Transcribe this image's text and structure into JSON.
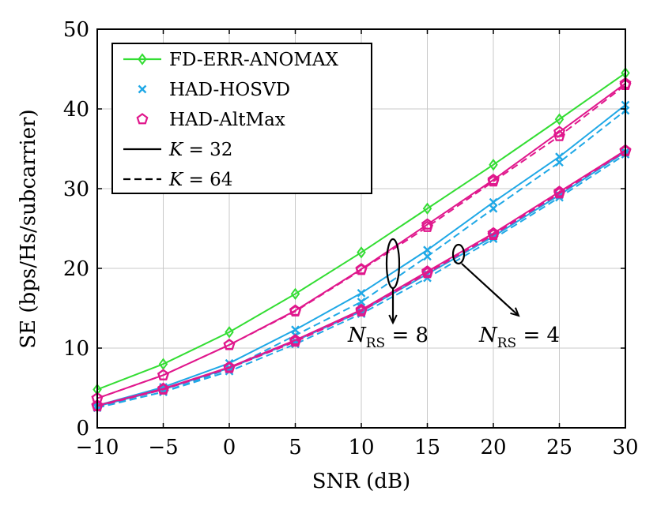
{
  "chart_data": {
    "type": "line",
    "xlabel": "SNR (dB)",
    "ylabel": "SE (bps/Hs/subcarrier)",
    "xlim": [
      -10,
      30
    ],
    "ylim": [
      0,
      50
    ],
    "xticks": [
      "−10",
      "−5",
      "0",
      "5",
      "10",
      "15",
      "20",
      "25",
      "30"
    ],
    "yticks": [
      "0",
      "10",
      "20",
      "30",
      "40",
      "50"
    ],
    "grid": true,
    "legend_position": "top-left",
    "x": [
      -10,
      -5,
      0,
      5,
      10,
      15,
      20,
      25,
      30
    ],
    "legend": [
      {
        "label": "FD-ERR-ANOMAX",
        "color": "#33dd33",
        "marker": "diamond",
        "dash": "solid"
      },
      {
        "label": "HAD-HOSVD",
        "color": "#1fa8e6",
        "marker": "x",
        "dash": "none"
      },
      {
        "label": "HAD-AltMax",
        "color": "#e0178c",
        "marker": "pentagon",
        "dash": "none"
      },
      {
        "label_prefix": "K",
        "label_value": " = 32",
        "color": "#000000",
        "marker": "none",
        "dash": "solid"
      },
      {
        "label_prefix": "K",
        "label_value": " = 64",
        "color": "#000000",
        "marker": "none",
        "dash": "dashed"
      }
    ],
    "series": [
      {
        "color": "#33dd33",
        "marker": "diamond",
        "dash": "solid",
        "values": [
          4.8,
          8.0,
          12.0,
          16.8,
          22.0,
          27.5,
          33.0,
          38.7,
          44.5
        ]
      },
      {
        "color": "#1fa8e6",
        "marker": "x",
        "dash": "solid",
        "values": [
          2.8,
          5.1,
          8.1,
          12.3,
          16.9,
          22.3,
          28.3,
          34.0,
          40.5
        ]
      },
      {
        "color": "#1fa8e6",
        "marker": "x",
        "dash": "dashed",
        "values": [
          2.6,
          4.5,
          7.4,
          11.6,
          15.8,
          21.5,
          27.5,
          33.3,
          39.8
        ]
      },
      {
        "color": "#e0178c",
        "marker": "pentagon",
        "dash": "solid",
        "values": [
          3.7,
          6.6,
          10.4,
          14.7,
          19.9,
          25.5,
          31.1,
          37.1,
          43.2
        ]
      },
      {
        "color": "#e0178c",
        "marker": "pentagon",
        "dash": "dashed",
        "values": [
          3.7,
          6.6,
          10.4,
          14.6,
          19.8,
          25.2,
          30.9,
          36.6,
          43.0
        ]
      },
      {
        "color": "#1fa8e6",
        "marker": "x",
        "dash": "solid",
        "values": [
          2.7,
          4.8,
          7.5,
          10.9,
          14.6,
          19.3,
          24.0,
          29.2,
          34.6
        ]
      },
      {
        "color": "#1fa8e6",
        "marker": "x",
        "dash": "dashed",
        "values": [
          2.5,
          4.5,
          7.1,
          10.5,
          14.3,
          18.8,
          23.7,
          28.9,
          34.3
        ]
      },
      {
        "color": "#e0178c",
        "marker": "pentagon",
        "dash": "solid",
        "values": [
          2.8,
          4.9,
          7.6,
          11.0,
          14.8,
          19.6,
          24.4,
          29.6,
          34.8
        ]
      },
      {
        "color": "#e0178c",
        "marker": "pentagon",
        "dash": "dashed",
        "values": [
          2.7,
          4.8,
          7.5,
          10.8,
          14.6,
          19.4,
          24.2,
          29.4,
          34.7
        ]
      }
    ],
    "annotations": [
      {
        "label_prefix": "N",
        "label_sub": "RS",
        "label_value": " = 8"
      },
      {
        "label_prefix": "N",
        "label_sub": "RS",
        "label_value": " = 4"
      }
    ]
  }
}
